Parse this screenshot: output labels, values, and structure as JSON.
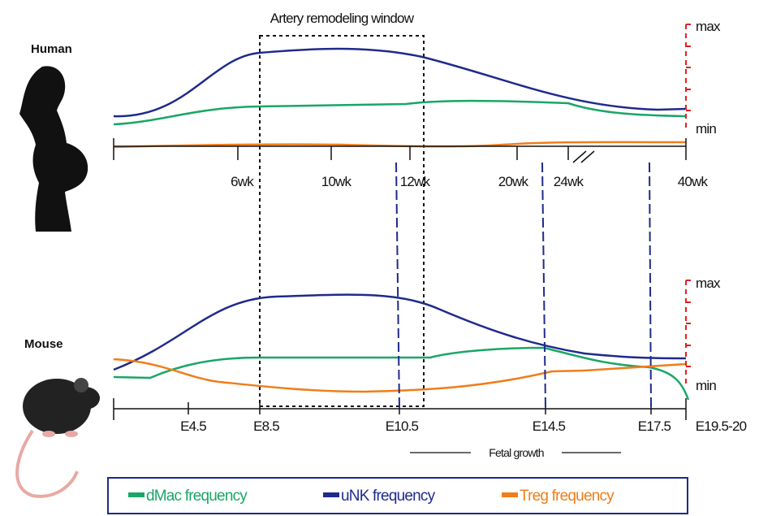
{
  "window_label": "Artery remodeling window",
  "human": {
    "label": "Human",
    "max": "max",
    "min": "min",
    "ticks": [
      "6wk",
      "10wk",
      "12wk",
      "20wk",
      "24wk",
      "40wk"
    ]
  },
  "mouse": {
    "label": "Mouse",
    "max": "max",
    "min": "min",
    "ticks": [
      "E4.5",
      "E8.5",
      "E10.5",
      "E14.5",
      "E17.5",
      "E19.5-20"
    ],
    "fetal_growth": "Fetal growth"
  },
  "legend": [
    "dMac frequency",
    "uNK frequency",
    "Treg frequency"
  ]
}
